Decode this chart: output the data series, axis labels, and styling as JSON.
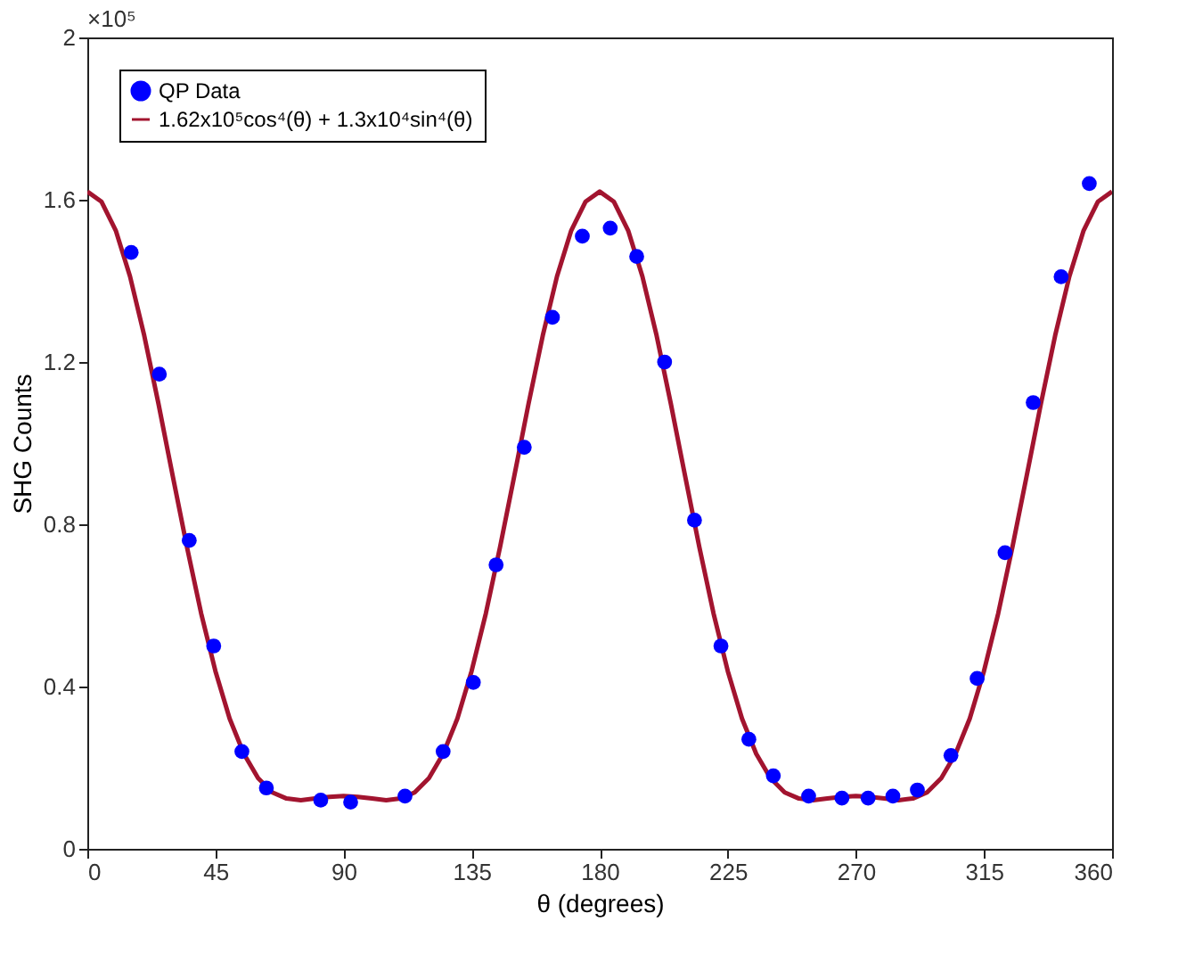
{
  "chart_data": {
    "type": "scatter",
    "xlabel": "θ (degrees)",
    "ylabel": "SHG Counts",
    "annotations": [
      "×10⁵"
    ],
    "xlim": [
      0,
      360
    ],
    "xticks": [
      0,
      45,
      90,
      135,
      180,
      225,
      270,
      315,
      360
    ],
    "ylim": [
      0,
      2
    ],
    "yticks": [
      0,
      0.4,
      0.8,
      1.2,
      1.6,
      2
    ],
    "grid": false,
    "legend": "top left",
    "series": [
      {
        "name": "QP Data",
        "marker": "circle",
        "color": "#0000ff",
        "x": [
          15.4,
          25.3,
          35.8,
          44.4,
          54.3,
          62.9,
          82,
          92.5,
          111.6,
          125,
          135.6,
          143.6,
          153.5,
          163.4,
          173.9,
          183.7,
          193,
          202.8,
          213.3,
          222.6,
          232.4,
          241,
          253.4,
          265.1,
          274.3,
          283,
          291.6,
          303.4,
          312.6,
          322.4,
          332.3,
          342.1,
          352
        ],
        "values": [
          1.47,
          1.17,
          0.76,
          0.5,
          0.24,
          0.15,
          0.12,
          0.115,
          0.13,
          0.24,
          0.41,
          0.7,
          0.99,
          1.31,
          1.51,
          1.53,
          1.46,
          1.2,
          0.81,
          0.5,
          0.27,
          0.18,
          0.13,
          0.125,
          0.125,
          0.13,
          0.145,
          0.23,
          0.42,
          0.73,
          1.1,
          1.41,
          1.64
        ]
      },
      {
        "name": "1.62x10⁵cos⁴(θ) + 1.3x10⁴sin⁴(θ)",
        "type": "line",
        "line_style": "solid",
        "color": "#a2142f",
        "x": [
          0,
          5,
          10,
          15,
          20,
          25,
          30,
          35,
          40,
          45,
          50,
          55,
          60,
          65,
          70,
          75,
          80,
          85,
          90,
          95,
          100,
          105,
          110,
          115,
          120,
          125,
          130,
          135,
          140,
          145,
          150,
          155,
          160,
          165,
          170,
          175,
          180,
          185,
          190,
          195,
          200,
          205,
          210,
          215,
          220,
          225,
          230,
          235,
          240,
          245,
          250,
          255,
          260,
          265,
          270,
          275,
          280,
          285,
          290,
          295,
          300,
          305,
          310,
          315,
          320,
          325,
          330,
          335,
          340,
          345,
          350,
          355,
          360
        ],
        "values": [
          1.62,
          1.595,
          1.524,
          1.411,
          1.265,
          1.097,
          0.919,
          0.744,
          0.58,
          0.438,
          0.321,
          0.234,
          0.174,
          0.139,
          0.124,
          0.12,
          0.124,
          0.128,
          0.13,
          0.128,
          0.124,
          0.12,
          0.124,
          0.139,
          0.174,
          0.234,
          0.321,
          0.438,
          0.58,
          0.744,
          0.919,
          1.097,
          1.265,
          1.411,
          1.524,
          1.595,
          1.62,
          1.595,
          1.524,
          1.411,
          1.265,
          1.097,
          0.919,
          0.744,
          0.58,
          0.438,
          0.321,
          0.234,
          0.174,
          0.139,
          0.124,
          0.12,
          0.124,
          0.128,
          0.13,
          0.128,
          0.124,
          0.12,
          0.124,
          0.139,
          0.174,
          0.234,
          0.321,
          0.438,
          0.58,
          0.744,
          0.919,
          1.097,
          1.265,
          1.411,
          1.524,
          1.595,
          1.62
        ]
      }
    ]
  }
}
